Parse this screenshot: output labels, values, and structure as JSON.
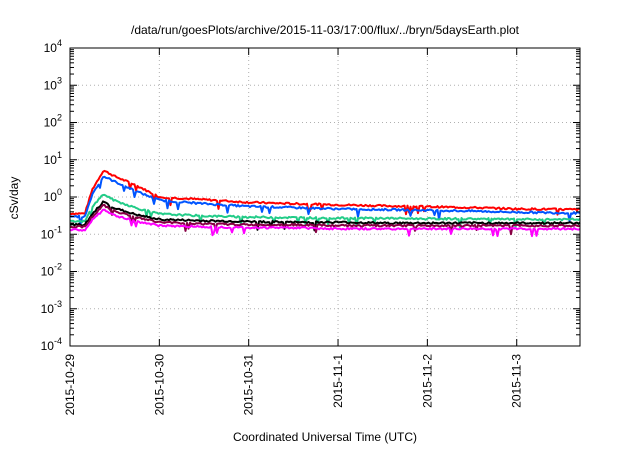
{
  "chart_data": {
    "type": "line",
    "title": "/data/run/goesPlots/archive/2015-11-03/17:00/flux/../bryn/5daysEarth.plot",
    "xlabel": "Coordinated Universal Time (UTC)",
    "ylabel": "cSv/day",
    "xlim": [
      "2015-10-29",
      "2015-11-03T17:00"
    ],
    "x_ticks": [
      "2015-10-29",
      "2015-10-30",
      "2015-10-31",
      "2015-11-1",
      "2015-11-2",
      "2015-11-3"
    ],
    "y_scale": "log",
    "ylim": [
      0.0001,
      10000
    ],
    "y_ticks": [
      {
        "base": "10",
        "exp": "-4"
      },
      {
        "base": "10",
        "exp": "-3"
      },
      {
        "base": "10",
        "exp": "-2"
      },
      {
        "base": "10",
        "exp": "-1"
      },
      {
        "base": "10",
        "exp": "0"
      },
      {
        "base": "10",
        "exp": "1"
      },
      {
        "base": "10",
        "exp": "2"
      },
      {
        "base": "10",
        "exp": "3"
      },
      {
        "base": "10",
        "exp": "4"
      }
    ],
    "grid": true,
    "legend": false,
    "series": [
      {
        "color": "#ff0000",
        "x": [
          "2015-10-29T00:00",
          "2015-10-29T04:00",
          "2015-10-29T06:00",
          "2015-10-29T09:00",
          "2015-10-29T12:00",
          "2015-10-29T18:00",
          "2015-10-30T00:00",
          "2015-10-30T12:00",
          "2015-10-31T00:00",
          "2015-10-31T12:00",
          "2015-11-01T00:00",
          "2015-11-01T12:00",
          "2015-11-02T00:00",
          "2015-11-02T12:00",
          "2015-11-03T00:00",
          "2015-11-03T17:00"
        ],
        "values": [
          0.36,
          0.36,
          1.6,
          5.2,
          3.6,
          2.0,
          1.0,
          0.85,
          0.72,
          0.66,
          0.62,
          0.58,
          0.55,
          0.52,
          0.48,
          0.46
        ]
      },
      {
        "color": "#0055ff",
        "x": [
          "2015-10-29T00:00",
          "2015-10-29T04:00",
          "2015-10-29T06:00",
          "2015-10-29T09:00",
          "2015-10-29T12:00",
          "2015-10-29T18:00",
          "2015-10-30T00:00",
          "2015-10-30T12:00",
          "2015-10-31T00:00",
          "2015-10-31T12:00",
          "2015-11-01T00:00",
          "2015-11-01T12:00",
          "2015-11-02T00:00",
          "2015-11-02T12:00",
          "2015-11-03T00:00",
          "2015-11-03T17:00"
        ],
        "values": [
          0.3,
          0.3,
          1.2,
          3.6,
          2.6,
          1.4,
          0.82,
          0.66,
          0.56,
          0.52,
          0.48,
          0.46,
          0.44,
          0.42,
          0.39,
          0.37
        ]
      },
      {
        "color": "#22cc88",
        "x": [
          "2015-10-29T00:00",
          "2015-10-29T04:00",
          "2015-10-29T06:00",
          "2015-10-29T09:00",
          "2015-10-29T12:00",
          "2015-10-29T18:00",
          "2015-10-30T00:00",
          "2015-10-30T12:00",
          "2015-10-31T00:00",
          "2015-10-31T12:00",
          "2015-11-01T00:00",
          "2015-11-01T12:00",
          "2015-11-02T00:00",
          "2015-11-02T12:00",
          "2015-11-03T00:00",
          "2015-11-03T17:00"
        ],
        "values": [
          0.22,
          0.22,
          0.55,
          1.2,
          0.8,
          0.5,
          0.35,
          0.31,
          0.29,
          0.28,
          0.27,
          0.27,
          0.26,
          0.26,
          0.25,
          0.25
        ]
      },
      {
        "color": "#000000",
        "x": [
          "2015-10-29T00:00",
          "2015-10-29T04:00",
          "2015-10-29T06:00",
          "2015-10-29T09:00",
          "2015-10-29T12:00",
          "2015-10-29T18:00",
          "2015-10-30T00:00",
          "2015-10-30T12:00",
          "2015-10-31T00:00",
          "2015-10-31T12:00",
          "2015-11-01T00:00",
          "2015-11-01T12:00",
          "2015-11-02T00:00",
          "2015-11-02T12:00",
          "2015-11-03T00:00",
          "2015-11-03T17:00"
        ],
        "values": [
          0.18,
          0.18,
          0.35,
          0.75,
          0.5,
          0.33,
          0.25,
          0.23,
          0.22,
          0.21,
          0.21,
          0.2,
          0.2,
          0.2,
          0.2,
          0.2
        ]
      },
      {
        "color": "#880044",
        "x": [
          "2015-10-29T00:00",
          "2015-10-29T04:00",
          "2015-10-29T06:00",
          "2015-10-29T09:00",
          "2015-10-29T12:00",
          "2015-10-29T18:00",
          "2015-10-30T00:00",
          "2015-10-30T12:00",
          "2015-10-31T00:00",
          "2015-10-31T12:00",
          "2015-11-01T00:00",
          "2015-11-01T12:00",
          "2015-11-02T00:00",
          "2015-11-02T12:00",
          "2015-11-03T00:00",
          "2015-11-03T17:00"
        ],
        "values": [
          0.16,
          0.16,
          0.3,
          0.6,
          0.42,
          0.28,
          0.21,
          0.19,
          0.18,
          0.18,
          0.17,
          0.17,
          0.17,
          0.17,
          0.17,
          0.17
        ]
      },
      {
        "color": "#ff00ff",
        "x": [
          "2015-10-29T00:00",
          "2015-10-29T04:00",
          "2015-10-29T06:00",
          "2015-10-29T09:00",
          "2015-10-29T12:00",
          "2015-10-29T18:00",
          "2015-10-30T00:00",
          "2015-10-30T12:00",
          "2015-10-31T00:00",
          "2015-10-31T12:00",
          "2015-11-01T00:00",
          "2015-11-01T12:00",
          "2015-11-02T00:00",
          "2015-11-02T12:00",
          "2015-11-03T00:00",
          "2015-11-03T17:00"
        ],
        "values": [
          0.13,
          0.13,
          0.24,
          0.45,
          0.32,
          0.22,
          0.17,
          0.16,
          0.15,
          0.15,
          0.14,
          0.14,
          0.14,
          0.14,
          0.14,
          0.14
        ]
      }
    ]
  }
}
